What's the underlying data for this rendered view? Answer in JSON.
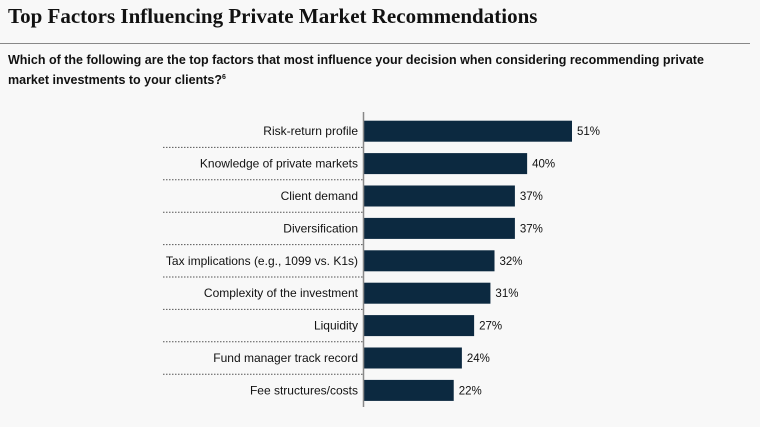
{
  "title": "Top Factors Influencing Private Market Recommendations",
  "question": "Which of the following are the top factors that most influence your decision when considering recommending private market investments to your clients?",
  "footnote": "6",
  "colors": {
    "bar": "#0c2940",
    "separator": "#555555",
    "axis": "#888888"
  },
  "chart_data": {
    "type": "bar",
    "orientation": "horizontal",
    "categories": [
      "Risk-return profile",
      "Knowledge of private markets",
      "Client demand",
      "Diversification",
      "Tax implications (e.g., 1099 vs. K1s)",
      "Complexity of the investment",
      "Liquidity",
      "Fund manager track record",
      "Fee structures/costs"
    ],
    "values": [
      51,
      40,
      37,
      37,
      32,
      31,
      27,
      24,
      22
    ],
    "labels": [
      "51%",
      "40%",
      "37%",
      "37%",
      "32%",
      "31%",
      "27%",
      "24%",
      "22%"
    ],
    "unit": "%",
    "xlim": [
      0,
      51
    ],
    "grid": false
  }
}
